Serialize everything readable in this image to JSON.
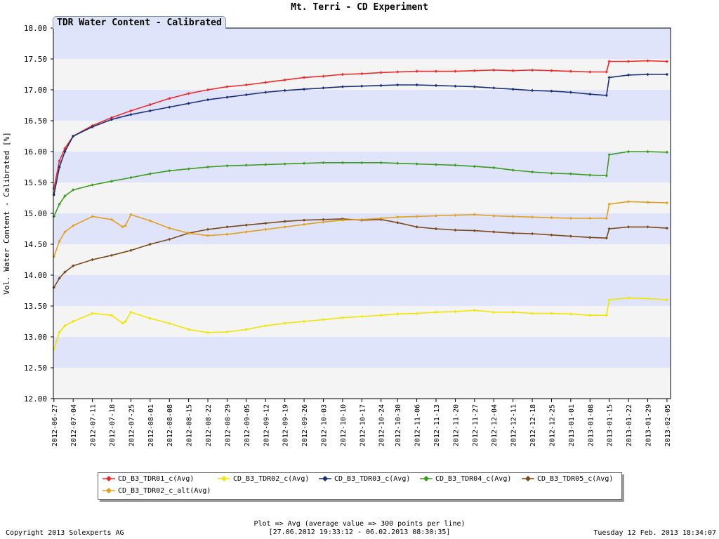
{
  "page": {
    "title": "Mt. Terri - CD Experiment",
    "tab_label": "TDR Water Content - Calibrated",
    "footer_plot_info": "Plot => Avg (average value => 300 points per line)",
    "footer_range": "[27.06.2012 19:33:12 - 06.02.2013 08:30:35]",
    "footer_copyright": "Copyright 2013 Solexperts AG",
    "footer_timestamp": "Tuesday 12 Feb. 2013 18:34:07"
  },
  "colors": {
    "band_blue": "#e0e4fb",
    "band_white": "#f4f4f4"
  },
  "chart_data": {
    "type": "line",
    "title": "TDR Water Content - Calibrated",
    "xlabel": "",
    "ylabel": "Vol. Water Content - Calibrated [%]",
    "ylim": [
      12.0,
      18.0
    ],
    "yticks": [
      "12.00",
      "12.50",
      "13.00",
      "13.50",
      "14.00",
      "14.50",
      "15.00",
      "15.50",
      "16.00",
      "16.50",
      "17.00",
      "17.50",
      "18.00"
    ],
    "xlim": [
      "2012-06-27",
      "2013-02-06"
    ],
    "xticks": [
      "2012-06-27",
      "2012-07-04",
      "2012-07-11",
      "2012-07-18",
      "2012-07-25",
      "2012-08-01",
      "2012-08-08",
      "2012-08-15",
      "2012-08-22",
      "2012-08-29",
      "2012-09-05",
      "2012-09-12",
      "2012-09-19",
      "2012-09-26",
      "2012-10-03",
      "2012-10-10",
      "2012-10-17",
      "2012-10-24",
      "2012-10-30",
      "2012-11-06",
      "2012-11-13",
      "2012-11-20",
      "2012-11-27",
      "2012-12-04",
      "2012-12-11",
      "2012-12-18",
      "2012-12-25",
      "2013-01-01",
      "2013-01-08",
      "2013-01-15",
      "2013-01-22",
      "2013-01-29",
      "2013-02-05"
    ],
    "grid": "horizontal bands",
    "legend_position": "bottom",
    "series": [
      {
        "name": "CD_B3_TDR01_c(Avg)",
        "color": "#ee2b2b",
        "x": [
          "2012-06-27",
          "2012-06-29",
          "2012-07-01",
          "2012-07-04",
          "2012-07-11",
          "2012-07-18",
          "2012-07-25",
          "2012-08-01",
          "2012-08-08",
          "2012-08-15",
          "2012-08-22",
          "2012-08-29",
          "2012-09-05",
          "2012-09-12",
          "2012-09-19",
          "2012-09-26",
          "2012-10-03",
          "2012-10-10",
          "2012-10-17",
          "2012-10-24",
          "2012-10-30",
          "2012-11-06",
          "2012-11-13",
          "2012-11-20",
          "2012-11-27",
          "2012-12-04",
          "2012-12-11",
          "2012-12-18",
          "2012-12-25",
          "2013-01-01",
          "2013-01-08",
          "2013-01-14",
          "2013-01-15",
          "2013-01-22",
          "2013-01-29",
          "2013-02-05"
        ],
        "y": [
          15.4,
          15.85,
          16.05,
          16.25,
          16.42,
          16.55,
          16.66,
          16.76,
          16.86,
          16.94,
          17.0,
          17.05,
          17.08,
          17.12,
          17.16,
          17.2,
          17.22,
          17.25,
          17.26,
          17.28,
          17.29,
          17.3,
          17.3,
          17.3,
          17.31,
          17.32,
          17.31,
          17.32,
          17.31,
          17.3,
          17.29,
          17.29,
          17.46,
          17.46,
          17.47,
          17.46
        ]
      },
      {
        "name": "CD_B3_TDR02_c(Avg)",
        "color": "#f0e600",
        "x": [
          "2012-06-27",
          "2012-06-29",
          "2012-07-01",
          "2012-07-04",
          "2012-07-11",
          "2012-07-18",
          "2012-07-22",
          "2012-07-23",
          "2012-07-25",
          "2012-08-01",
          "2012-08-08",
          "2012-08-15",
          "2012-08-22",
          "2012-08-29",
          "2012-09-05",
          "2012-09-12",
          "2012-09-19",
          "2012-09-26",
          "2012-10-03",
          "2012-10-10",
          "2012-10-17",
          "2012-10-24",
          "2012-10-30",
          "2012-11-06",
          "2012-11-13",
          "2012-11-20",
          "2012-11-27",
          "2012-12-04",
          "2012-12-11",
          "2012-12-18",
          "2012-12-25",
          "2013-01-01",
          "2013-01-08",
          "2013-01-14",
          "2013-01-15",
          "2013-01-22",
          "2013-01-29",
          "2013-02-05"
        ],
        "y": [
          12.8,
          13.08,
          13.18,
          13.25,
          13.38,
          13.35,
          13.22,
          13.25,
          13.4,
          13.3,
          13.22,
          13.12,
          13.07,
          13.08,
          13.12,
          13.18,
          13.22,
          13.25,
          13.28,
          13.31,
          13.33,
          13.35,
          13.37,
          13.38,
          13.4,
          13.41,
          13.43,
          13.4,
          13.4,
          13.38,
          13.38,
          13.37,
          13.35,
          13.35,
          13.6,
          13.63,
          13.62,
          13.6
        ]
      },
      {
        "name": "CD_B3_TDR03_c(Avg)",
        "color": "#1a2f7a",
        "x": [
          "2012-06-27",
          "2012-06-29",
          "2012-07-01",
          "2012-07-04",
          "2012-07-11",
          "2012-07-18",
          "2012-07-25",
          "2012-08-01",
          "2012-08-08",
          "2012-08-15",
          "2012-08-22",
          "2012-08-29",
          "2012-09-05",
          "2012-09-12",
          "2012-09-19",
          "2012-09-26",
          "2012-10-03",
          "2012-10-10",
          "2012-10-17",
          "2012-10-24",
          "2012-10-30",
          "2012-11-06",
          "2012-11-13",
          "2012-11-20",
          "2012-11-27",
          "2012-12-04",
          "2012-12-11",
          "2012-12-18",
          "2012-12-25",
          "2013-01-01",
          "2013-01-08",
          "2013-01-14",
          "2013-01-15",
          "2013-01-22",
          "2013-01-29",
          "2013-02-05"
        ],
        "y": [
          15.3,
          15.75,
          16.0,
          16.25,
          16.4,
          16.52,
          16.6,
          16.66,
          16.72,
          16.78,
          16.84,
          16.88,
          16.92,
          16.96,
          16.99,
          17.01,
          17.03,
          17.05,
          17.06,
          17.07,
          17.08,
          17.08,
          17.07,
          17.06,
          17.05,
          17.03,
          17.01,
          16.99,
          16.98,
          16.96,
          16.93,
          16.91,
          17.2,
          17.24,
          17.25,
          17.25
        ]
      },
      {
        "name": "CD_B3_TDR04_c(Avg)",
        "color": "#3c9c1c",
        "x": [
          "2012-06-27",
          "2012-06-29",
          "2012-07-01",
          "2012-07-04",
          "2012-07-11",
          "2012-07-18",
          "2012-07-25",
          "2012-08-01",
          "2012-08-08",
          "2012-08-15",
          "2012-08-22",
          "2012-08-29",
          "2012-09-05",
          "2012-09-12",
          "2012-09-19",
          "2012-09-26",
          "2012-10-03",
          "2012-10-10",
          "2012-10-17",
          "2012-10-24",
          "2012-10-30",
          "2012-11-06",
          "2012-11-13",
          "2012-11-20",
          "2012-11-27",
          "2012-12-04",
          "2012-12-11",
          "2012-12-18",
          "2012-12-25",
          "2013-01-01",
          "2013-01-08",
          "2013-01-14",
          "2013-01-15",
          "2013-01-22",
          "2013-01-29",
          "2013-02-05"
        ],
        "y": [
          14.95,
          15.15,
          15.28,
          15.38,
          15.46,
          15.52,
          15.58,
          15.64,
          15.69,
          15.72,
          15.75,
          15.77,
          15.78,
          15.79,
          15.8,
          15.81,
          15.82,
          15.82,
          15.82,
          15.82,
          15.81,
          15.8,
          15.79,
          15.78,
          15.76,
          15.74,
          15.7,
          15.67,
          15.65,
          15.64,
          15.62,
          15.61,
          15.95,
          16.0,
          16.0,
          15.99
        ]
      },
      {
        "name": "CD_B3_TDR05_c(Avg)",
        "color": "#7a4a1a",
        "x": [
          "2012-06-27",
          "2012-06-29",
          "2012-07-01",
          "2012-07-04",
          "2012-07-11",
          "2012-07-18",
          "2012-07-25",
          "2012-08-01",
          "2012-08-08",
          "2012-08-15",
          "2012-08-22",
          "2012-08-29",
          "2012-09-05",
          "2012-09-12",
          "2012-09-19",
          "2012-09-26",
          "2012-10-03",
          "2012-10-10",
          "2012-10-17",
          "2012-10-24",
          "2012-10-30",
          "2012-11-06",
          "2012-11-13",
          "2012-11-20",
          "2012-11-27",
          "2012-12-04",
          "2012-12-11",
          "2012-12-18",
          "2012-12-25",
          "2013-01-01",
          "2013-01-08",
          "2013-01-14",
          "2013-01-15",
          "2013-01-22",
          "2013-01-29",
          "2013-02-05"
        ],
        "y": [
          13.8,
          13.95,
          14.05,
          14.15,
          14.25,
          14.32,
          14.4,
          14.5,
          14.58,
          14.68,
          14.74,
          14.78,
          14.81,
          14.84,
          14.87,
          14.89,
          14.9,
          14.91,
          14.89,
          14.9,
          14.85,
          14.78,
          14.75,
          14.73,
          14.72,
          14.7,
          14.68,
          14.67,
          14.65,
          14.63,
          14.61,
          14.6,
          14.75,
          14.78,
          14.78,
          14.76
        ]
      },
      {
        "name": "CD_B3_TDR02_c_alt(Avg)",
        "color": "#e0a020",
        "x": [
          "2012-06-27",
          "2012-06-29",
          "2012-07-01",
          "2012-07-04",
          "2012-07-11",
          "2012-07-18",
          "2012-07-22",
          "2012-07-23",
          "2012-07-25",
          "2012-08-01",
          "2012-08-08",
          "2012-08-15",
          "2012-08-22",
          "2012-08-29",
          "2012-09-05",
          "2012-09-12",
          "2012-09-19",
          "2012-09-26",
          "2012-10-03",
          "2012-10-10",
          "2012-10-17",
          "2012-10-24",
          "2012-10-30",
          "2012-11-06",
          "2012-11-13",
          "2012-11-20",
          "2012-11-27",
          "2012-12-04",
          "2012-12-11",
          "2012-12-18",
          "2012-12-25",
          "2013-01-01",
          "2013-01-08",
          "2013-01-14",
          "2013-01-15",
          "2013-01-22",
          "2013-01-29",
          "2013-02-05"
        ],
        "y": [
          14.3,
          14.55,
          14.7,
          14.8,
          14.95,
          14.9,
          14.78,
          14.8,
          14.98,
          14.88,
          14.76,
          14.68,
          14.64,
          14.66,
          14.7,
          14.74,
          14.78,
          14.82,
          14.86,
          14.89,
          14.9,
          14.92,
          14.94,
          14.95,
          14.96,
          14.97,
          14.98,
          14.96,
          14.95,
          14.94,
          14.93,
          14.92,
          14.92,
          14.92,
          15.15,
          15.19,
          15.18,
          15.17
        ]
      }
    ]
  }
}
